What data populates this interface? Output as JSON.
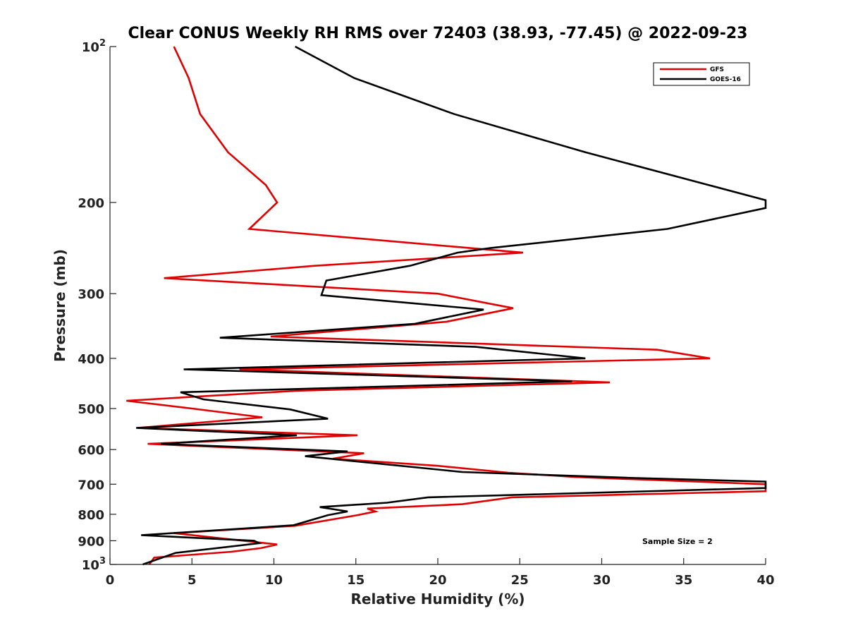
{
  "chart_data": {
    "type": "line",
    "title": "Clear CONUS Weekly RH RMS over 72403 (38.93, -77.45) @ 2022-09-23",
    "xlabel": "Relative Humidity (%)",
    "ylabel": "Pressure (mb)",
    "xlim": [
      0,
      40
    ],
    "ylim": [
      100,
      1000
    ],
    "y_scale": "log",
    "y_reversed": true,
    "x_ticks": [
      0,
      5,
      10,
      15,
      20,
      25,
      30,
      35,
      40
    ],
    "y_ticks": [
      {
        "value": 100,
        "label": "10",
        "sup": "2"
      },
      {
        "value": 200,
        "label": "200",
        "sup": ""
      },
      {
        "value": 300,
        "label": "300",
        "sup": ""
      },
      {
        "value": 400,
        "label": "400",
        "sup": ""
      },
      {
        "value": 500,
        "label": "500",
        "sup": ""
      },
      {
        "value": 600,
        "label": "600",
        "sup": ""
      },
      {
        "value": 700,
        "label": "700",
        "sup": ""
      },
      {
        "value": 800,
        "label": "800",
        "sup": ""
      },
      {
        "value": 900,
        "label": "900",
        "sup": ""
      },
      {
        "value": 1000,
        "label": "10",
        "sup": "3"
      }
    ],
    "legend_position": "top-right",
    "grid": false,
    "series": [
      {
        "name": "GFS",
        "color": "#e00000",
        "points": [
          [
            3.9,
            100
          ],
          [
            4.8,
            115
          ],
          [
            5.5,
            135
          ],
          [
            7.2,
            160
          ],
          [
            9.5,
            185
          ],
          [
            10.2,
            200
          ],
          [
            8.5,
            225
          ],
          [
            25.2,
            250
          ],
          [
            12.5,
            265
          ],
          [
            3.3,
            280
          ],
          [
            20.0,
            300
          ],
          [
            24.6,
            320
          ],
          [
            20.5,
            340
          ],
          [
            9.8,
            363
          ],
          [
            33.4,
            385
          ],
          [
            36.6,
            400
          ],
          [
            7.9,
            420
          ],
          [
            30.5,
            445
          ],
          [
            11.4,
            462
          ],
          [
            1.0,
            483
          ],
          [
            5.0,
            500
          ],
          [
            9.3,
            520
          ],
          [
            1.7,
            545
          ],
          [
            15.1,
            563
          ],
          [
            2.3,
            585
          ],
          [
            15.5,
            610
          ],
          [
            13.6,
            625
          ],
          [
            20.0,
            645
          ],
          [
            24.3,
            665
          ],
          [
            28.4,
            678
          ],
          [
            40.0,
            700
          ],
          [
            40.0,
            722
          ],
          [
            24.5,
            742
          ],
          [
            21.5,
            765
          ],
          [
            15.7,
            780
          ],
          [
            16.2,
            790
          ],
          [
            15.1,
            803
          ],
          [
            11.3,
            842
          ],
          [
            3.9,
            870
          ],
          [
            10.2,
            915
          ],
          [
            9.2,
            930
          ],
          [
            7.4,
            945
          ],
          [
            2.7,
            970
          ],
          [
            2.4,
            1000
          ]
        ]
      },
      {
        "name": "GOES-16",
        "color": "#000000",
        "points": [
          [
            11.3,
            100
          ],
          [
            14.9,
            115
          ],
          [
            21.0,
            135
          ],
          [
            29.0,
            160
          ],
          [
            36.5,
            185
          ],
          [
            40.0,
            198
          ],
          [
            40.0,
            205
          ],
          [
            34.0,
            225
          ],
          [
            23.2,
            245
          ],
          [
            21.2,
            250
          ],
          [
            18.3,
            265
          ],
          [
            13.2,
            283
          ],
          [
            12.9,
            302
          ],
          [
            22.8,
            322
          ],
          [
            18.6,
            343
          ],
          [
            6.7,
            365
          ],
          [
            22.3,
            380
          ],
          [
            29.0,
            400
          ],
          [
            4.5,
            420
          ],
          [
            28.2,
            443
          ],
          [
            4.3,
            465
          ],
          [
            5.7,
            480
          ],
          [
            11.0,
            502
          ],
          [
            13.3,
            523
          ],
          [
            1.6,
            545
          ],
          [
            11.4,
            563
          ],
          [
            3.1,
            585
          ],
          [
            14.5,
            605
          ],
          [
            11.9,
            618
          ],
          [
            21.5,
            663
          ],
          [
            31.5,
            680
          ],
          [
            40.0,
            692
          ],
          [
            40.0,
            712
          ],
          [
            19.4,
            742
          ],
          [
            16.9,
            760
          ],
          [
            12.8,
            775
          ],
          [
            14.5,
            790
          ],
          [
            13.3,
            803
          ],
          [
            11.2,
            840
          ],
          [
            1.9,
            878
          ],
          [
            8.8,
            900
          ],
          [
            9.1,
            910
          ],
          [
            7.2,
            925
          ],
          [
            4.0,
            950
          ],
          [
            2.0,
            1000
          ]
        ]
      }
    ],
    "legend": [
      {
        "label": "GFS",
        "color": "#e00000"
      },
      {
        "label": "GOES-16",
        "color": "#000000"
      }
    ],
    "annotations": [
      "Sample Size = 2"
    ]
  }
}
